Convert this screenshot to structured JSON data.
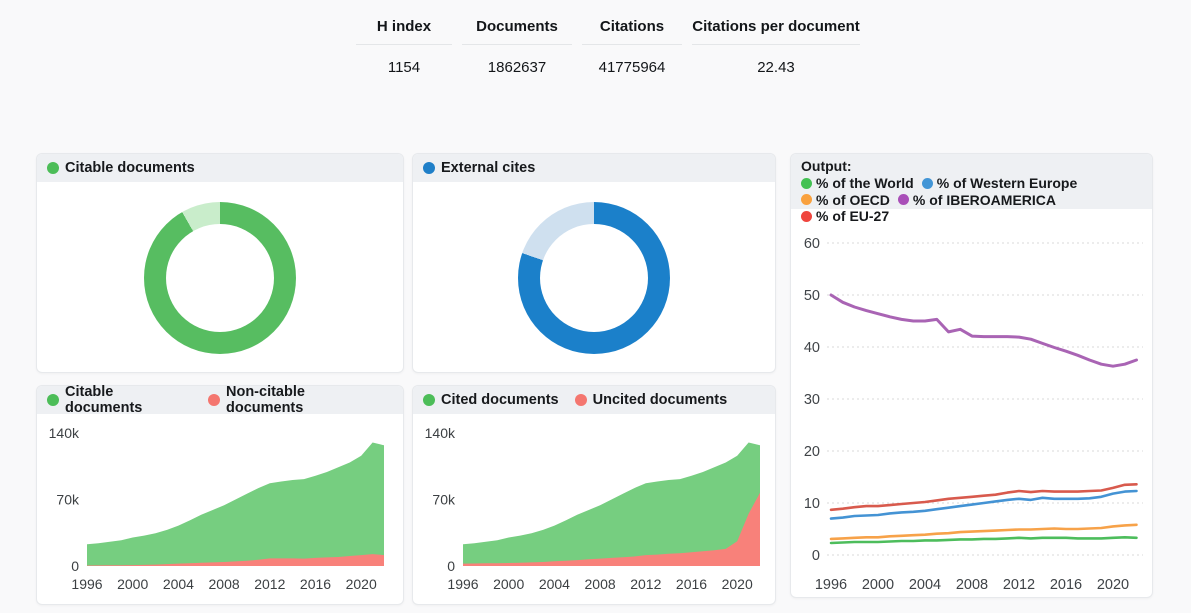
{
  "stats_table": {
    "columns": [
      {
        "label": "H index",
        "value": "1154"
      },
      {
        "label": "Documents",
        "value": "1862637"
      },
      {
        "label": "Citations",
        "value": "41775964"
      },
      {
        "label": "Citations per document",
        "value": "22.43"
      }
    ]
  },
  "panels": {
    "citable_donut": {
      "title": "Citable documents",
      "dot_color": "#4cbd58"
    },
    "external_donut": {
      "title": "External cites",
      "dot_color": "#1f7fc8"
    },
    "citable_area": {
      "legend": [
        {
          "label": "Citable documents",
          "color": "#4cbd58"
        },
        {
          "label": "Non-citable documents",
          "color": "#f4766f"
        }
      ]
    },
    "cited_area": {
      "legend": [
        {
          "label": "Cited documents",
          "color": "#4cbd58"
        },
        {
          "label": "Uncited documents",
          "color": "#f4766f"
        }
      ]
    },
    "output": {
      "title": "Output:",
      "legend": [
        {
          "label": "% of the World",
          "color": "#43c153"
        },
        {
          "label": "% of Western Europe",
          "color": "#4295d6"
        },
        {
          "label": "% of OECD",
          "color": "#f9a13e"
        },
        {
          "label": "% of IBEROAMERICA",
          "color": "#a94fb8"
        },
        {
          "label": "% of EU-27",
          "color": "#ef453e"
        }
      ]
    }
  },
  "chart_data": [
    {
      "type": "pie",
      "title": "Citable documents",
      "slices": [
        {
          "label": "Citable documents",
          "pct": 91.7,
          "color": "#57bd61"
        },
        {
          "label": "",
          "pct": 8.3,
          "color": "#c9edcb"
        }
      ]
    },
    {
      "type": "pie",
      "title": "External cites",
      "slices": [
        {
          "label": "External cites",
          "pct": 80.3,
          "color": "#1b80ca"
        },
        {
          "label": "",
          "pct": 19.7,
          "color": "#cfe0ef"
        }
      ]
    },
    {
      "type": "area",
      "title": "Citable documents / Non-citable documents",
      "stacked": true,
      "values_unit": "thousands of documents",
      "categories": [
        "1996",
        "1997",
        "1998",
        "1999",
        "2000",
        "2001",
        "2002",
        "2003",
        "2004",
        "2005",
        "2006",
        "2007",
        "2008",
        "2009",
        "2010",
        "2011",
        "2012",
        "2013",
        "2014",
        "2015",
        "2016",
        "2017",
        "2018",
        "2019",
        "2020",
        "2021",
        "2022"
      ],
      "series": [
        {
          "name": "Citable documents",
          "color": "#76ce80",
          "values": [
            22.5,
            23.4,
            24.8,
            26.2,
            29.0,
            30.8,
            33.0,
            36.0,
            40.0,
            45.0,
            50.5,
            55.2,
            59.8,
            65.2,
            70.5,
            75.5,
            79.0,
            81.0,
            82.5,
            83.7,
            86.5,
            90.0,
            94.5,
            98.5,
            104.5,
            117.5,
            115.5
          ]
        },
        {
          "name": "Non-citable documents",
          "color": "#f8817a",
          "values": [
            0.5,
            0.6,
            0.7,
            0.8,
            1.0,
            1.2,
            1.5,
            2.0,
            2.5,
            3.0,
            3.5,
            3.8,
            4.2,
            4.8,
            5.5,
            6.5,
            8.0,
            8.0,
            8.0,
            7.8,
            8.5,
            9.0,
            9.5,
            10.5,
            11.5,
            12.5,
            11.5
          ]
        }
      ],
      "ylim": [
        0,
        140
      ],
      "yticks": [
        {
          "value": 140,
          "label": "140k"
        },
        {
          "value": 70,
          "label": "70k"
        },
        {
          "value": 0,
          "label": "0"
        }
      ],
      "xtick_indices": [
        0,
        4,
        8,
        12,
        16,
        20,
        24
      ],
      "grid": false,
      "legend_position": "top"
    },
    {
      "type": "area",
      "title": "Cited documents / Uncited documents",
      "stacked": true,
      "values_unit": "thousands of documents",
      "categories": [
        "1996",
        "1997",
        "1998",
        "1999",
        "2000",
        "2001",
        "2002",
        "2003",
        "2004",
        "2005",
        "2006",
        "2007",
        "2008",
        "2009",
        "2010",
        "2011",
        "2012",
        "2013",
        "2014",
        "2015",
        "2016",
        "2017",
        "2018",
        "2019",
        "2020",
        "2021",
        "2022"
      ],
      "series": [
        {
          "name": "Cited documents",
          "color": "#76ce80",
          "values": [
            20.5,
            21.4,
            22.7,
            24.0,
            26.8,
            28.5,
            30.7,
            33.8,
            37.5,
            42.5,
            47.8,
            52.0,
            56.2,
            61.5,
            66.8,
            72.0,
            75.5,
            77.0,
            77.5,
            78.0,
            80.5,
            83.5,
            87.5,
            91.0,
            90.0,
            75.0,
            50.0
          ]
        },
        {
          "name": "Uncited documents",
          "color": "#f8817a",
          "values": [
            2.5,
            2.6,
            2.8,
            3.0,
            3.2,
            3.5,
            3.8,
            4.2,
            5.0,
            5.5,
            6.2,
            7.0,
            7.8,
            8.5,
            9.2,
            10.0,
            11.5,
            12.0,
            13.0,
            13.5,
            14.5,
            15.5,
            16.5,
            18.0,
            26.0,
            55.0,
            77.0
          ]
        }
      ],
      "ylim": [
        0,
        140
      ],
      "yticks": [
        {
          "value": 140,
          "label": "140k"
        },
        {
          "value": 70,
          "label": "70k"
        },
        {
          "value": 0,
          "label": "0"
        }
      ],
      "xtick_indices": [
        0,
        4,
        8,
        12,
        16,
        20,
        24
      ],
      "grid": false,
      "legend_position": "top"
    },
    {
      "type": "line",
      "title": "Output:",
      "categories": [
        "1996",
        "1997",
        "1998",
        "1999",
        "2000",
        "2001",
        "2002",
        "2003",
        "2004",
        "2005",
        "2006",
        "2007",
        "2008",
        "2009",
        "2010",
        "2011",
        "2012",
        "2013",
        "2014",
        "2015",
        "2016",
        "2017",
        "2018",
        "2019",
        "2020",
        "2021",
        "2022"
      ],
      "series": [
        {
          "name": "% of the World",
          "color": "#4dbd5c",
          "values": [
            2.3,
            2.4,
            2.5,
            2.5,
            2.5,
            2.6,
            2.7,
            2.7,
            2.8,
            2.8,
            2.9,
            3.0,
            3.0,
            3.1,
            3.1,
            3.2,
            3.3,
            3.2,
            3.3,
            3.3,
            3.3,
            3.2,
            3.2,
            3.2,
            3.3,
            3.4,
            3.3
          ]
        },
        {
          "name": "% of Western Europe",
          "color": "#4493d4",
          "values": [
            7.0,
            7.2,
            7.5,
            7.6,
            7.7,
            8.0,
            8.2,
            8.3,
            8.5,
            8.8,
            9.1,
            9.4,
            9.7,
            10.0,
            10.3,
            10.6,
            10.8,
            10.6,
            11.0,
            10.8,
            10.8,
            10.8,
            10.9,
            11.2,
            11.8,
            12.2,
            12.3
          ]
        },
        {
          "name": "% of OECD",
          "color": "#f7a249",
          "values": [
            3.1,
            3.2,
            3.3,
            3.4,
            3.4,
            3.6,
            3.7,
            3.8,
            3.9,
            4.1,
            4.2,
            4.4,
            4.5,
            4.6,
            4.7,
            4.8,
            4.9,
            4.9,
            5.0,
            5.1,
            5.0,
            5.0,
            5.1,
            5.2,
            5.5,
            5.7,
            5.8
          ]
        },
        {
          "name": "% of IBEROAMERICA",
          "color": "#a964b4",
          "values": [
            50.0,
            48.6,
            47.7,
            47.0,
            46.4,
            45.8,
            45.3,
            45.0,
            45.0,
            45.3,
            42.9,
            43.4,
            42.1,
            42.0,
            42.0,
            42.0,
            41.9,
            41.5,
            40.7,
            39.9,
            39.2,
            38.4,
            37.5,
            36.7,
            36.3,
            36.7,
            37.5
          ]
        },
        {
          "name": "% of EU-27",
          "color": "#d85a4d",
          "values": [
            8.7,
            8.9,
            9.2,
            9.4,
            9.4,
            9.6,
            9.8,
            10.0,
            10.2,
            10.5,
            10.8,
            11.0,
            11.2,
            11.4,
            11.6,
            12.0,
            12.3,
            12.1,
            12.3,
            12.2,
            12.2,
            12.2,
            12.3,
            12.4,
            12.9,
            13.5,
            13.6
          ]
        }
      ],
      "ylim": [
        0,
        65
      ],
      "yticks": [
        {
          "value": 0,
          "label": "0"
        },
        {
          "value": 10,
          "label": "10"
        },
        {
          "value": 20,
          "label": "20"
        },
        {
          "value": 30,
          "label": "30"
        },
        {
          "value": 40,
          "label": "40"
        },
        {
          "value": 50,
          "label": "50"
        },
        {
          "value": 60,
          "label": "60"
        }
      ],
      "xtick_indices": [
        0,
        4,
        8,
        12,
        16,
        20,
        24
      ],
      "grid": true,
      "legend_position": "top"
    }
  ]
}
